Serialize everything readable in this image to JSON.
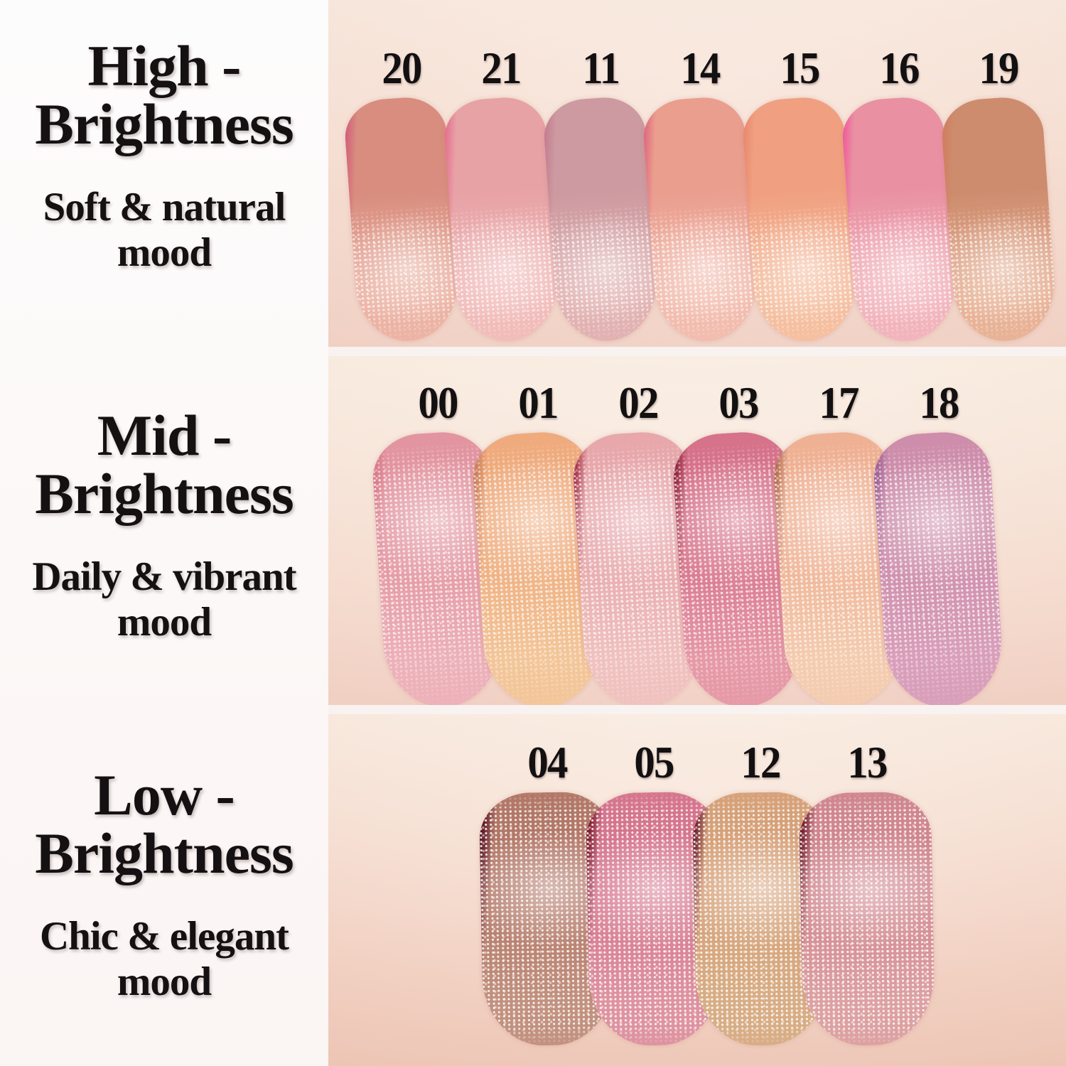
{
  "page": {
    "left_bg": "#fdfbfb",
    "gap_color": "#f8f2f0",
    "text_color": "#151112"
  },
  "rows": [
    {
      "id": "high-brightness",
      "title_lines": [
        "High -",
        "Brightness"
      ],
      "subtitle_lines": [
        "Soft & natural",
        "mood"
      ],
      "photo_bg_top": "#f8e7db",
      "photo_bg_bottom": "#f2d2c5",
      "swatches": [
        {
          "label": "20",
          "edge": "#d4627c",
          "top": "#d88d7e",
          "bottom": "#ecb3a4"
        },
        {
          "label": "21",
          "edge": "#e67393",
          "top": "#e7a2a6",
          "bottom": "#f1bcba"
        },
        {
          "label": "11",
          "edge": "#c57f92",
          "top": "#cc9aa0",
          "bottom": "#e2b2b2"
        },
        {
          "label": "14",
          "edge": "#e16d80",
          "top": "#ea9e8e",
          "bottom": "#f2bcae"
        },
        {
          "label": "15",
          "edge": "#ea8a70",
          "top": "#f0a080",
          "bottom": "#f5bfa0"
        },
        {
          "label": "16",
          "edge": "#ef609b",
          "top": "#e991a3",
          "bottom": "#f2b4bc"
        },
        {
          "label": "19",
          "edge": "#d07e60",
          "top": "#cd8c6e",
          "bottom": "#e8b296"
        }
      ]
    },
    {
      "id": "mid-brightness",
      "title_lines": [
        "Mid -",
        "Brightness"
      ],
      "subtitle_lines": [
        "Daily & vibrant",
        "mood"
      ],
      "photo_bg_top": "#f9ecdf",
      "photo_bg_bottom": "#f2cfc2",
      "swatches": [
        {
          "label": "00",
          "edge": "#d87787",
          "top": "#e295a0",
          "bottom": "#edb1b9"
        },
        {
          "label": "01",
          "edge": "#c87a57",
          "top": "#efab7d",
          "bottom": "#f3c69a"
        },
        {
          "label": "02",
          "edge": "#a43147",
          "top": "#e7a7ab",
          "bottom": "#f0c2bf"
        },
        {
          "label": "03",
          "edge": "#8e2138",
          "top": "#d6728a",
          "bottom": "#e699a7"
        },
        {
          "label": "17",
          "edge": "#b06a4e",
          "top": "#efb194",
          "bottom": "#f4ccb0"
        },
        {
          "label": "18",
          "edge": "#9c5d91",
          "top": "#cd8dab",
          "bottom": "#d99fba"
        }
      ]
    },
    {
      "id": "low-brightness",
      "title_lines": [
        "Low -",
        "Brightness"
      ],
      "subtitle_lines": [
        "Chic & elegant",
        "mood"
      ],
      "photo_bg_top": "#faecdf",
      "photo_bg_bottom": "#eec4b2",
      "swatches": [
        {
          "label": "04",
          "edge": "#5c1523",
          "top": "#b27767",
          "bottom": "#c2917f"
        },
        {
          "label": "05",
          "edge": "#7e1b2e",
          "top": "#d5758d",
          "bottom": "#de93a0"
        },
        {
          "label": "12",
          "edge": "#6f2130",
          "top": "#d6a179",
          "bottom": "#d8ad85"
        },
        {
          "label": "13",
          "edge": "#701d2b",
          "top": "#d0868e",
          "bottom": "#dda1a2"
        }
      ]
    }
  ]
}
